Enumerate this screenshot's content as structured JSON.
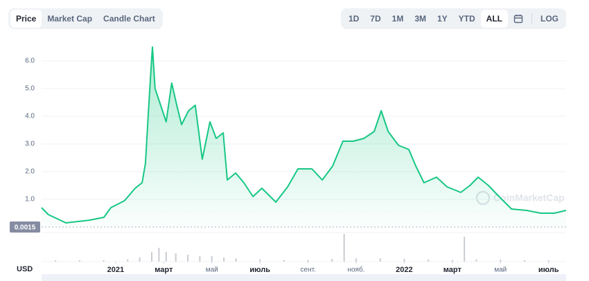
{
  "tabs": [
    "Price",
    "Market Cap",
    "Candle Chart"
  ],
  "active_tab": 0,
  "ranges": [
    "1D",
    "7D",
    "1M",
    "3M",
    "1Y",
    "YTD",
    "ALL"
  ],
  "active_range": 6,
  "scale_toggle": "LOG",
  "chart_data": {
    "type": "area",
    "axis_label": "USD",
    "watermark": "CoinMarketCap",
    "color": "#16c784",
    "grid": true,
    "x": [
      -3.08,
      -2.8,
      -2.07,
      -1.07,
      -0.49,
      -0.2,
      0.37,
      0.81,
      1.1,
      1.24,
      1.35,
      1.47,
      1.53,
      1.64,
      1.87,
      2.1,
      2.33,
      2.54,
      2.74,
      3.03,
      3.31,
      3.6,
      3.92,
      4.18,
      4.47,
      4.64,
      4.99,
      5.33,
      5.71,
      6.08,
      6.66,
      7.15,
      7.58,
      8.16,
      8.59,
      9.02,
      9.45,
      9.88,
      10.32,
      10.75,
      11.04,
      11.33,
      11.76,
      12.19,
      12.48,
      12.82,
      13.34,
      13.78,
      14.35,
      14.73,
      15.07,
      15.5,
      15.94,
      16.46,
      17.09,
      17.67,
      18.24,
      18.73
    ],
    "series": [
      {
        "name": "Price",
        "color": "#16c784",
        "values": [
          0.7,
          0.45,
          0.15,
          0.25,
          0.35,
          0.7,
          0.95,
          1.4,
          1.6,
          2.3,
          4.0,
          5.7,
          6.5,
          5.0,
          4.4,
          3.8,
          5.2,
          4.4,
          3.7,
          4.2,
          4.4,
          2.45,
          3.8,
          3.2,
          3.4,
          1.7,
          1.95,
          1.6,
          1.1,
          1.4,
          0.9,
          1.45,
          2.1,
          2.1,
          1.7,
          2.2,
          3.1,
          3.1,
          3.2,
          3.45,
          4.2,
          3.45,
          2.95,
          2.8,
          2.2,
          1.6,
          1.8,
          1.45,
          1.25,
          1.5,
          1.8,
          1.5,
          1.1,
          0.65,
          0.6,
          0.5,
          0.5,
          0.6
        ]
      }
    ],
    "volume": {
      "color": "#c9ccd2",
      "x": [
        -2.5,
        -1.5,
        -0.5,
        0.5,
        1.0,
        1.5,
        1.8,
        2.1,
        2.5,
        3.0,
        3.5,
        4.0,
        4.5,
        5.0,
        6,
        7,
        8,
        9,
        9.5,
        10,
        11,
        12,
        13,
        14,
        14.5,
        15,
        16,
        17,
        18
      ],
      "values": [
        0.05,
        0.05,
        0.05,
        0.08,
        0.15,
        0.35,
        0.5,
        0.35,
        0.3,
        0.25,
        0.2,
        0.2,
        0.15,
        0.12,
        0.08,
        0.06,
        0.06,
        0.1,
        1.0,
        0.12,
        0.12,
        0.1,
        0.08,
        0.06,
        0.9,
        0.08,
        0.07,
        0.05,
        0.05
      ],
      "y2lim": [
        0,
        1
      ]
    },
    "price_marker": 0.0015,
    "xlim": [
      -3.08,
      18.73
    ],
    "xticks": [
      {
        "value": 0,
        "label": "2021"
      },
      {
        "value": 2,
        "label": "март"
      },
      {
        "value": 4,
        "label": "май"
      },
      {
        "value": 6,
        "label": "июль"
      },
      {
        "value": 8,
        "label": "сент."
      },
      {
        "value": 10,
        "label": "нояб."
      },
      {
        "value": 12,
        "label": "2022"
      },
      {
        "value": 14,
        "label": "март"
      },
      {
        "value": 16,
        "label": "май"
      },
      {
        "value": 18,
        "label": "июль"
      }
    ],
    "ylim": [
      0,
      6.8
    ],
    "yticks": [
      {
        "value": 1,
        "label": "1.0"
      },
      {
        "value": 2,
        "label": "2.0"
      },
      {
        "value": 3,
        "label": "3.0"
      },
      {
        "value": 4,
        "label": "4.0"
      },
      {
        "value": 5,
        "label": "5.0"
      },
      {
        "value": 6,
        "label": "6.0"
      }
    ]
  }
}
